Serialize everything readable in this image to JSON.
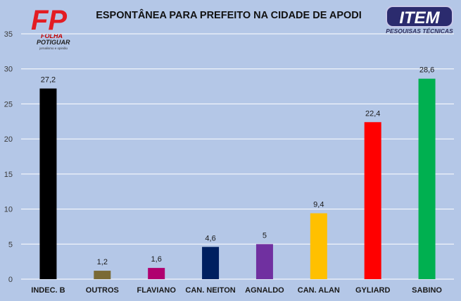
{
  "chart_data": {
    "type": "bar",
    "title": "ESPONTÂNEA PARA PREFEITO NA CIDADE DE APODI",
    "categories": [
      "INDEC. B",
      "OUTROS",
      "FLAVIANO",
      "CAN. NEITON",
      "AGNALDO",
      "CAN. ALAN",
      "GYLIARD",
      "SABINO"
    ],
    "values": [
      27.2,
      1.2,
      1.6,
      4.6,
      5,
      9.4,
      22.4,
      28.6
    ],
    "value_labels": [
      "27,2",
      "1,2",
      "1,6",
      "4,6",
      "5",
      "9,4",
      "22,4",
      "28,6"
    ],
    "colors": [
      "#000000",
      "#7a6a35",
      "#b0006f",
      "#002060",
      "#7030a0",
      "#ffc000",
      "#ff0000",
      "#00b050"
    ],
    "y_ticks": [
      "0",
      "5",
      "10",
      "15",
      "20",
      "25",
      "30",
      "35"
    ],
    "ylim": [
      0,
      35
    ],
    "grid": true,
    "xlabel": "",
    "ylabel": ""
  },
  "logos": {
    "left": {
      "mark": "FP",
      "name_line1": "FOLHA",
      "name_line2": "POTIGUAR",
      "tagline": "jornalismo e opinião"
    },
    "right": {
      "mark": "ITEM",
      "subtitle": "PESQUISAS TÉCNICAS"
    }
  },
  "colors": {
    "background": "#b4c7e7",
    "grid": "#ffffff"
  }
}
